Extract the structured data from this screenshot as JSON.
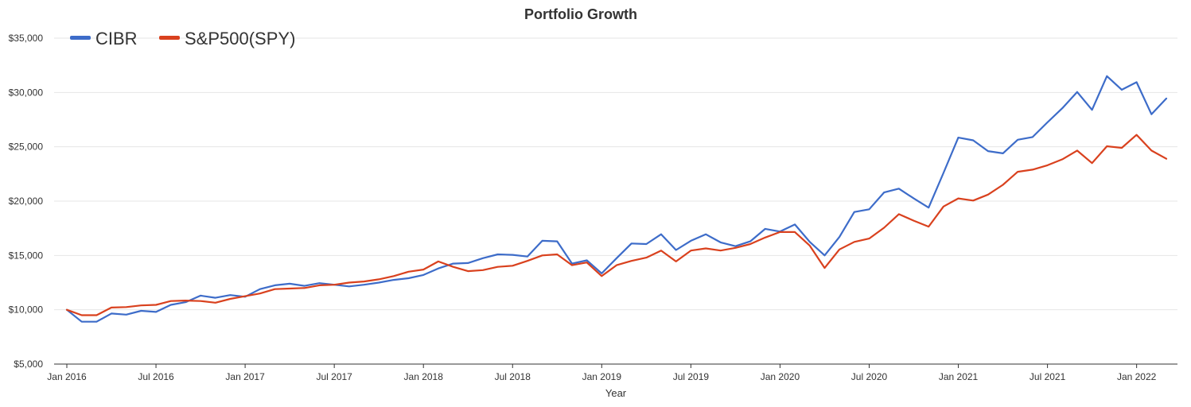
{
  "chart_data": {
    "type": "line",
    "title": "Portfolio Growth",
    "xlabel": "Year",
    "ylabel": "",
    "ylim": [
      5000,
      35000
    ],
    "y_ticks": [
      5000,
      10000,
      15000,
      20000,
      25000,
      30000,
      35000
    ],
    "y_tick_labels": [
      "$5,000",
      "$10,000",
      "$15,000",
      "$20,000",
      "$25,000",
      "$30,000",
      "$35,000"
    ],
    "x_start": "2016-01",
    "x_end": "2022-03",
    "x_ticks": [
      "2016-01",
      "2016-07",
      "2017-01",
      "2017-07",
      "2018-01",
      "2018-07",
      "2019-01",
      "2019-07",
      "2020-01",
      "2020-07",
      "2021-01",
      "2021-07",
      "2022-01"
    ],
    "x_tick_labels": [
      "Jan 2016",
      "Jul 2016",
      "Jan 2017",
      "Jul 2017",
      "Jan 2018",
      "Jul 2018",
      "Jan 2019",
      "Jul 2019",
      "Jan 2020",
      "Jul 2020",
      "Jan 2021",
      "Jul 2021",
      "Jan 2022"
    ],
    "grid": true,
    "legend_position": "top-left",
    "x": [
      "2016-01",
      "2016-02",
      "2016-03",
      "2016-04",
      "2016-05",
      "2016-06",
      "2016-07",
      "2016-08",
      "2016-09",
      "2016-10",
      "2016-11",
      "2016-12",
      "2017-01",
      "2017-02",
      "2017-03",
      "2017-04",
      "2017-05",
      "2017-06",
      "2017-07",
      "2017-08",
      "2017-09",
      "2017-10",
      "2017-11",
      "2017-12",
      "2018-01",
      "2018-02",
      "2018-03",
      "2018-04",
      "2018-05",
      "2018-06",
      "2018-07",
      "2018-08",
      "2018-09",
      "2018-10",
      "2018-11",
      "2018-12",
      "2019-01",
      "2019-02",
      "2019-03",
      "2019-04",
      "2019-05",
      "2019-06",
      "2019-07",
      "2019-08",
      "2019-09",
      "2019-10",
      "2019-11",
      "2019-12",
      "2020-01",
      "2020-02",
      "2020-03",
      "2020-04",
      "2020-05",
      "2020-06",
      "2020-07",
      "2020-08",
      "2020-09",
      "2020-10",
      "2020-11",
      "2020-12",
      "2021-01",
      "2021-02",
      "2021-03",
      "2021-04",
      "2021-05",
      "2021-06",
      "2021-07",
      "2021-08",
      "2021-09",
      "2021-10",
      "2021-11",
      "2021-12",
      "2022-01",
      "2022-02",
      "2022-03"
    ],
    "series": [
      {
        "name": "CIBR",
        "color": "#3d6cc9",
        "values": [
          10000,
          8900,
          8900,
          9650,
          9550,
          9900,
          9800,
          10450,
          10700,
          11300,
          11100,
          11350,
          11200,
          11900,
          12250,
          12400,
          12200,
          12450,
          12300,
          12150,
          12300,
          12500,
          12750,
          12900,
          13200,
          13800,
          14250,
          14300,
          14750,
          15100,
          15050,
          14900,
          16350,
          16300,
          14250,
          14550,
          13350,
          14750,
          16100,
          16050,
          16950,
          15500,
          16350,
          16950,
          16200,
          15850,
          16300,
          17450,
          17200,
          17850,
          16250,
          15000,
          16700,
          19000,
          19250,
          20800,
          21150,
          20250,
          19400,
          22600,
          25850,
          25600,
          24600,
          24400,
          25650,
          25900,
          27250,
          28550,
          30050,
          28400,
          31500,
          30250,
          30950,
          28000,
          29450
        ]
      },
      {
        "name": "S&P500(SPY)",
        "color": "#d9411e",
        "values": [
          10000,
          9500,
          9500,
          10200,
          10250,
          10400,
          10450,
          10800,
          10850,
          10800,
          10650,
          11000,
          11250,
          11500,
          11900,
          11950,
          12000,
          12250,
          12300,
          12500,
          12600,
          12800,
          13100,
          13500,
          13700,
          14450,
          13950,
          13550,
          13650,
          13950,
          14050,
          14500,
          15000,
          15100,
          14100,
          14350,
          13100,
          14100,
          14500,
          14800,
          15450,
          14450,
          15450,
          15650,
          15450,
          15700,
          16050,
          16650,
          17150,
          17150,
          15900,
          13850,
          15550,
          16250,
          16550,
          17550,
          18800,
          18200,
          17650,
          19500,
          20250,
          20050,
          20600,
          21500,
          22700,
          22900,
          23300,
          23850,
          24650,
          23500,
          25050,
          24900,
          26100,
          24650,
          23900
        ]
      }
    ]
  }
}
